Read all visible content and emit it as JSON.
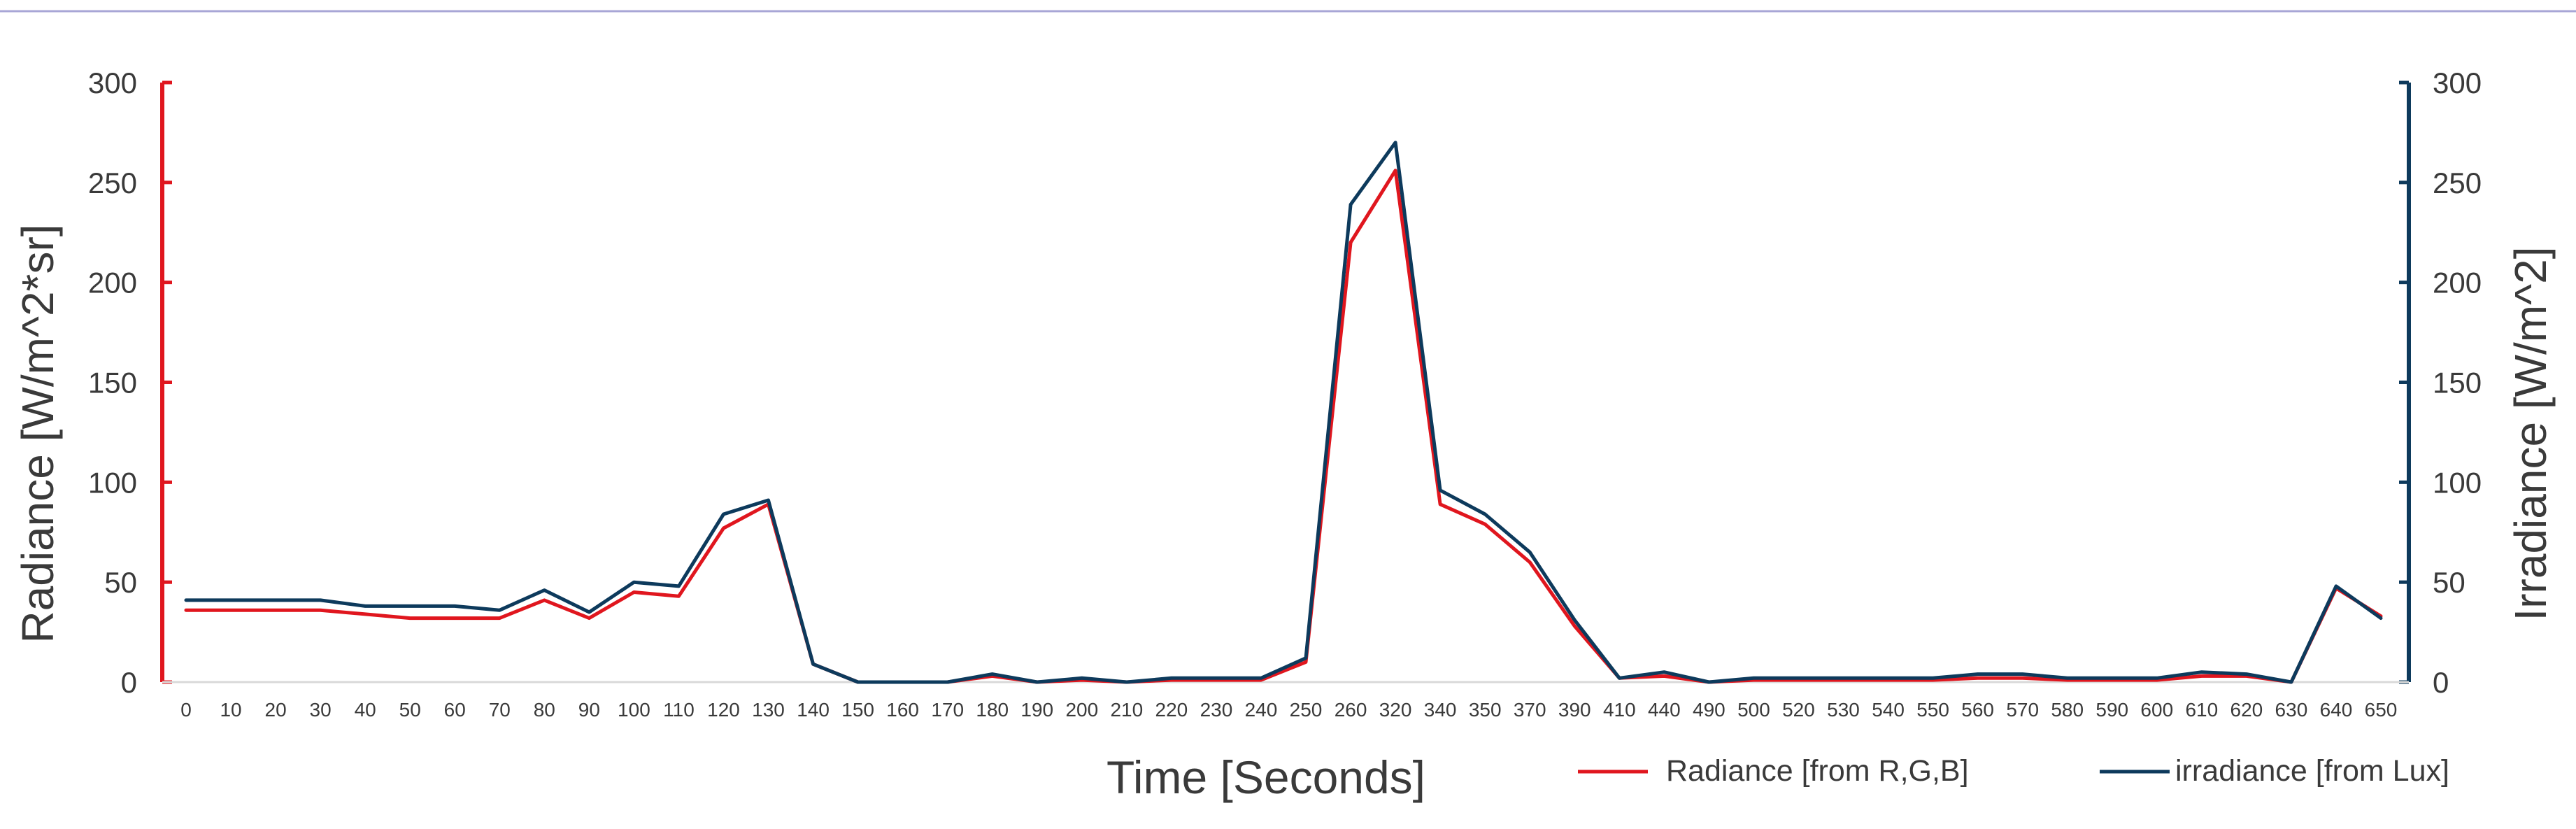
{
  "chart_data": {
    "type": "line",
    "title": "",
    "xlabel": "Time [Seconds]",
    "ylabel_left": "Radiance [W/m^2*sr]",
    "ylabel_right": "Irradiance [W/m^2]",
    "ylim_left": [
      0,
      300
    ],
    "ylim_right": [
      0,
      300
    ],
    "yticks": [
      0,
      50,
      100,
      150,
      200,
      250,
      300
    ],
    "grid": false,
    "legend_position": "bottom-right",
    "categories": [
      "0",
      "10",
      "20",
      "30",
      "40",
      "50",
      "60",
      "70",
      "80",
      "90",
      "100",
      "110",
      "120",
      "130",
      "140",
      "150",
      "160",
      "170",
      "180",
      "190",
      "200",
      "210",
      "220",
      "230",
      "240",
      "250",
      "260",
      "320",
      "340",
      "350",
      "370",
      "390",
      "410",
      "440",
      "490",
      "500",
      "520",
      "530",
      "540",
      "550",
      "560",
      "570",
      "580",
      "590",
      "600",
      "610",
      "620",
      "630",
      "640",
      "650"
    ],
    "series": [
      {
        "name": "Radiance [from R,G,B]",
        "axis": "left",
        "color": "#e0161e",
        "values": [
          36,
          36,
          36,
          36,
          34,
          32,
          32,
          32,
          41,
          32,
          45,
          43,
          77,
          89,
          9,
          0,
          0,
          0,
          3,
          0,
          1,
          0,
          1,
          1,
          1,
          10,
          220,
          256,
          89,
          79,
          60,
          28,
          2,
          3,
          0,
          1,
          1,
          1,
          1,
          1,
          2,
          2,
          1,
          1,
          1,
          3,
          3,
          0,
          47,
          33
        ]
      },
      {
        "name": "irradiance [from Lux]",
        "axis": "right",
        "color": "#0d3a5c",
        "values": [
          41,
          41,
          41,
          41,
          38,
          38,
          38,
          36,
          46,
          35,
          50,
          48,
          84,
          91,
          9,
          0,
          0,
          0,
          4,
          0,
          2,
          0,
          2,
          2,
          2,
          12,
          239,
          270,
          96,
          84,
          65,
          31,
          2,
          5,
          0,
          2,
          2,
          2,
          2,
          2,
          4,
          4,
          2,
          2,
          2,
          5,
          4,
          0,
          48,
          32
        ]
      }
    ]
  },
  "colors": {
    "left_axis": "#e0161e",
    "right_axis": "#0d3a5c",
    "top_rule": "#a8a6d6",
    "baseline": "#d9d9d9"
  }
}
